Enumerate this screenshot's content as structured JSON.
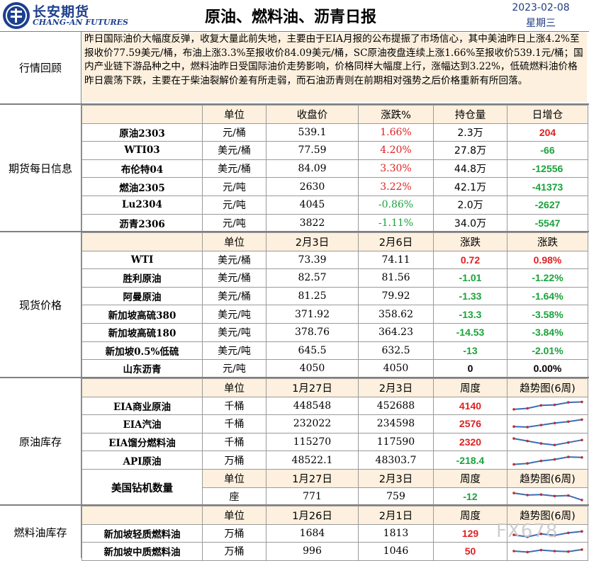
{
  "header": {
    "brand_cn": "长安期货",
    "brand_en": "CHANG-AN FUTURES",
    "title": "原油、燃料油、沥青日报",
    "date": "2023-02-08",
    "weekday": "星期三"
  },
  "review": {
    "label": "行情回顾",
    "text": "昨日国际油价大幅度反弹，收复大量此前失地，主要由于EIA月报的公布提振了市场信心，其中美油昨日上涨4.2%至报收价77.59美元/桶，布油上涨3.3%至报收价84.09美元/桶，SC原油夜盘连续上涨1.66%至报收价539.1元/桶；国内产业链下游品种之中，燃料油昨日受国际油价走势影响，价格同样大幅度上行，涨幅达到3.22%，低硫燃料油价格昨日震荡下跌，主要在于柴油裂解价差有所走弱，而石油沥青则在前期相对强势之后价格重新有所回落。"
  },
  "futures": {
    "label": "期货每日信息",
    "headers": [
      "",
      "单位",
      "收盘价",
      "涨跌%",
      "持仓量",
      "日增仓"
    ],
    "rows": [
      {
        "name": "原油2303",
        "unit": "元/桶",
        "close": "539.1",
        "chg": "1.66%",
        "oi": "2.3万",
        "doi": "204"
      },
      {
        "name": "WTI03",
        "unit": "美元/桶",
        "close": "77.59",
        "chg": "4.20%",
        "oi": "27.8万",
        "doi": "-66"
      },
      {
        "name": "布伦特04",
        "unit": "美元/桶",
        "close": "84.09",
        "chg": "3.30%",
        "oi": "44.8万",
        "doi": "-12556"
      },
      {
        "name": "燃油2305",
        "unit": "元/吨",
        "close": "2630",
        "chg": "3.22%",
        "oi": "42.1万",
        "doi": "-41373"
      },
      {
        "name": "Lu2304",
        "unit": "元/吨",
        "close": "4045",
        "chg": "-0.86%",
        "oi": "2.0万",
        "doi": "-2627"
      },
      {
        "name": "沥青2306",
        "unit": "元/吨",
        "close": "3822",
        "chg": "-1.11%",
        "oi": "34.0万",
        "doi": "-5547"
      }
    ]
  },
  "spot": {
    "label": "现货价格",
    "headers": [
      "",
      "单位",
      "2月3日",
      "2月6日",
      "涨跌",
      "涨跌"
    ],
    "rows": [
      {
        "name": "WTI",
        "unit": "美元/桶",
        "d1": "73.39",
        "d2": "74.11",
        "chg": "0.72",
        "pct": "0.98%"
      },
      {
        "name": "胜利原油",
        "unit": "美元/桶",
        "d1": "82.57",
        "d2": "81.56",
        "chg": "-1.01",
        "pct": "-1.22%"
      },
      {
        "name": "阿曼原油",
        "unit": "美元/桶",
        "d1": "81.25",
        "d2": "79.92",
        "chg": "-1.33",
        "pct": "-1.64%"
      },
      {
        "name": "新加坡高硫380",
        "unit": "美元/吨",
        "d1": "371.92",
        "d2": "358.62",
        "chg": "-13.3",
        "pct": "-3.58%"
      },
      {
        "name": "新加坡高硫180",
        "unit": "美元/吨",
        "d1": "378.76",
        "d2": "364.23",
        "chg": "-14.53",
        "pct": "-3.84%"
      },
      {
        "name": "新加坡0.5%低硫",
        "unit": "美元/吨",
        "d1": "645.5",
        "d2": "632.5",
        "chg": "-13",
        "pct": "-2.01%"
      },
      {
        "name": "山东沥青",
        "unit": "元/吨",
        "d1": "4050",
        "d2": "4050",
        "chg": "0",
        "pct": "0.00%"
      }
    ]
  },
  "crude_inventory": {
    "label": "原油库存",
    "headers": [
      "",
      "单位",
      "1月27日",
      "2月3日",
      "周度",
      "趋势图(6周)"
    ],
    "rows": [
      {
        "name": "EIA商业原油",
        "unit": "千桶",
        "d1": "448548",
        "d2": "452688",
        "wk": "4140",
        "trend": [
          0.15,
          0.25,
          0.55,
          0.6,
          0.85,
          0.9
        ]
      },
      {
        "name": "EIA汽油",
        "unit": "千桶",
        "d1": "232022",
        "d2": "234598",
        "wk": "2576",
        "trend": [
          0.2,
          0.15,
          0.35,
          0.55,
          0.7,
          0.9
        ]
      },
      {
        "name": "EIA馏分燃料油",
        "unit": "千桶",
        "d1": "115270",
        "d2": "117590",
        "wk": "2320",
        "trend": [
          0.85,
          0.6,
          0.35,
          0.2,
          0.45,
          0.7
        ]
      },
      {
        "name": "API原油",
        "unit": "万桶",
        "d1": "48522.1",
        "d2": "48303.7",
        "wk": "-218.4",
        "trend": [
          0.1,
          0.2,
          0.45,
          0.6,
          0.85,
          0.8
        ]
      }
    ],
    "rig": {
      "name": "美国钻机数量",
      "headers": [
        "单位",
        "1月27日",
        "2月3日",
        "周度",
        "趋势图(6周)"
      ],
      "unit": "座",
      "d1": "771",
      "d2": "759",
      "wk": "-12",
      "trend": [
        0.85,
        0.65,
        0.7,
        0.55,
        0.6,
        0.15
      ]
    }
  },
  "fuel_inventory": {
    "label": "燃料油库存",
    "headers": [
      "",
      "单位",
      "1月26日",
      "2月1日",
      "周度",
      "趋势图(6周)"
    ],
    "rows": [
      {
        "name": "新加坡轻质燃料油",
        "unit": "万桶",
        "d1": "1684",
        "d2": "1813",
        "wk": "129",
        "trend": [
          0.35,
          0.15,
          0.45,
          0.3,
          0.55,
          0.7
        ]
      },
      {
        "name": "新加坡中质燃料油",
        "unit": "万桶",
        "d1": "996",
        "d2": "1046",
        "wk": "50",
        "trend": [
          0.5,
          0.4,
          0.6,
          0.5,
          0.45,
          0.65
        ]
      }
    ]
  },
  "watermark": "FX678",
  "colors": {
    "up": "#e02020",
    "down": "#1aa33c",
    "header_bg": "#fdf0de",
    "brand": "#1d3f8f"
  }
}
